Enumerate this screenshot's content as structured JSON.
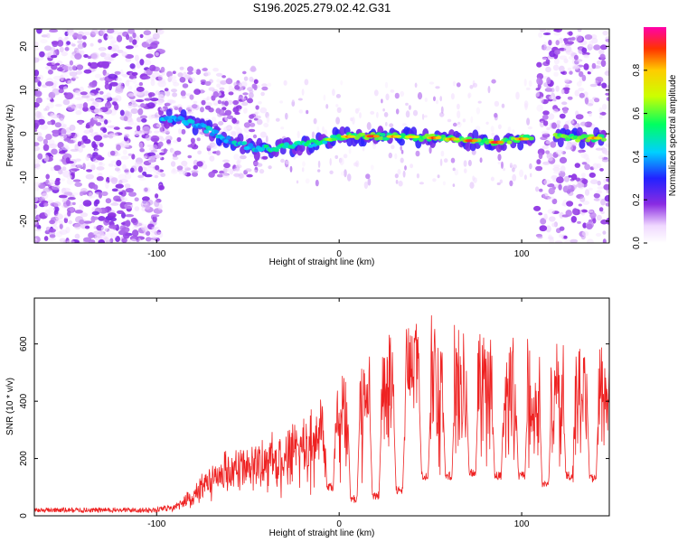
{
  "title": "S196.2025.279.02.42.G31",
  "chart_data": [
    {
      "type": "heatmap",
      "xlabel": "Height of straight line (km)",
      "ylabel": "Frequency (Hz)",
      "xlim": [
        -167,
        148
      ],
      "ylim": [
        -25,
        24
      ],
      "x_ticks": [
        -100,
        0,
        100
      ],
      "y_ticks": [
        -20,
        -10,
        0,
        10,
        20
      ],
      "colorbar": {
        "label": "Normalized spectral amplitude",
        "range": [
          0,
          1
        ],
        "ticks": [
          0.0,
          0.2,
          0.4,
          0.6,
          0.8
        ]
      },
      "ridge": [
        {
          "x": -95,
          "freq": 3.5
        },
        {
          "x": -85,
          "freq": 3.0
        },
        {
          "x": -75,
          "freq": 1.5
        },
        {
          "x": -60,
          "freq": -1.5
        },
        {
          "x": -45,
          "freq": -3.5
        },
        {
          "x": -30,
          "freq": -3.0
        },
        {
          "x": -20,
          "freq": -2.5
        },
        {
          "x": -10,
          "freq": -1.8
        },
        {
          "x": 0,
          "freq": -0.8
        },
        {
          "x": 10,
          "freq": -0.5
        },
        {
          "x": 25,
          "freq": -0.6
        },
        {
          "x": 40,
          "freq": -0.7
        },
        {
          "x": 55,
          "freq": -1.0
        },
        {
          "x": 70,
          "freq": -1.5
        },
        {
          "x": 85,
          "freq": -2.0
        },
        {
          "x": 100,
          "freq": -1.2
        },
        {
          "x": 110,
          "freq": -0.5
        },
        {
          "x": 125,
          "freq": -1.0
        },
        {
          "x": 145,
          "freq": -1.0
        }
      ]
    },
    {
      "type": "line",
      "xlabel": "Height of straight line (km)",
      "ylabel": "SNR (10 * v/v)",
      "xlim": [
        -167,
        148
      ],
      "ylim": [
        0,
        760
      ],
      "x_ticks": [
        -100,
        0,
        100
      ],
      "y_ticks": [
        0,
        200,
        400,
        600
      ],
      "color": "#ee2222",
      "envelope": [
        {
          "x": -167,
          "snr": 20
        },
        {
          "x": -100,
          "snr": 20
        },
        {
          "x": -90,
          "snr": 40
        },
        {
          "x": -80,
          "snr": 90
        },
        {
          "x": -70,
          "snr": 170
        },
        {
          "x": -60,
          "snr": 200
        },
        {
          "x": -50,
          "snr": 220
        },
        {
          "x": -40,
          "snr": 240
        },
        {
          "x": -30,
          "snr": 260
        },
        {
          "x": -20,
          "snr": 300
        },
        {
          "x": -10,
          "snr": 360
        },
        {
          "x": 0,
          "snr": 420
        },
        {
          "x": 10,
          "snr": 470
        },
        {
          "x": 20,
          "snr": 500
        },
        {
          "x": 30,
          "snr": 560
        },
        {
          "x": 40,
          "snr": 610
        },
        {
          "x": 50,
          "snr": 600
        },
        {
          "x": 60,
          "snr": 580
        },
        {
          "x": 70,
          "snr": 560
        },
        {
          "x": 80,
          "snr": 540
        },
        {
          "x": 90,
          "snr": 530
        },
        {
          "x": 100,
          "snr": 520
        },
        {
          "x": 110,
          "snr": 510
        },
        {
          "x": 120,
          "snr": 500
        },
        {
          "x": 130,
          "snr": 490
        },
        {
          "x": 140,
          "snr": 500
        },
        {
          "x": 148,
          "snr": 520
        }
      ],
      "dropouts": [
        {
          "x": -5,
          "snr": 100
        },
        {
          "x": 8,
          "snr": 60
        },
        {
          "x": 20,
          "snr": 70
        },
        {
          "x": 33,
          "snr": 90
        },
        {
          "x": 47,
          "snr": 140
        },
        {
          "x": 60,
          "snr": 140
        },
        {
          "x": 73,
          "snr": 150
        },
        {
          "x": 87,
          "snr": 140
        },
        {
          "x": 100,
          "snr": 140
        },
        {
          "x": 113,
          "snr": 110
        },
        {
          "x": 126,
          "snr": 140
        },
        {
          "x": 139,
          "snr": 130
        }
      ]
    }
  ]
}
